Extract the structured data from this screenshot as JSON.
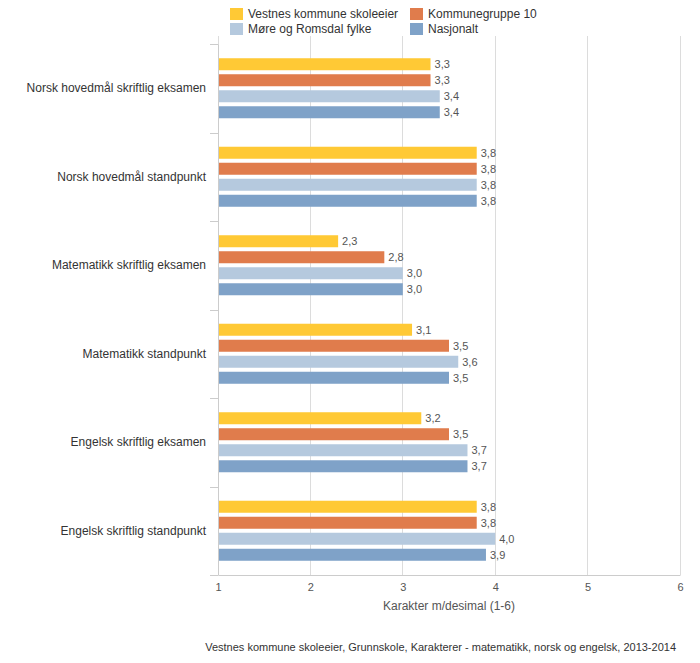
{
  "chart_data": {
    "type": "bar",
    "orientation": "horizontal",
    "categories": [
      "Norsk hovedmål skriftlig eksamen",
      "Norsk hovedmål standpunkt",
      "Matematikk skriftlig eksamen",
      "Matematikk standpunkt",
      "Engelsk skriftlig eksamen",
      "Engelsk skriftlig standpunkt"
    ],
    "series": [
      {
        "name": "Vestnes kommune skoleeier",
        "color": "#ffc935",
        "values": [
          3.3,
          3.8,
          2.3,
          3.1,
          3.2,
          3.8
        ],
        "value_labels": [
          "3,3",
          "3,8",
          "2,3",
          "3,1",
          "3,2",
          "3,8"
        ]
      },
      {
        "name": "Kommunegruppe 10",
        "color": "#e07c4c",
        "values": [
          3.3,
          3.8,
          2.8,
          3.5,
          3.5,
          3.8
        ],
        "value_labels": [
          "3,3",
          "3,8",
          "2,8",
          "3,5",
          "3,5",
          "3,8"
        ]
      },
      {
        "name": "Møre og Romsdal fylke",
        "color": "#b5c9de",
        "values": [
          3.4,
          3.8,
          3.0,
          3.6,
          3.7,
          4.0
        ],
        "value_labels": [
          "3,4",
          "3,8",
          "3,0",
          "3,6",
          "3,7",
          "4,0"
        ]
      },
      {
        "name": "Nasjonalt",
        "color": "#7fa2c8",
        "values": [
          3.4,
          3.8,
          3.0,
          3.5,
          3.7,
          3.9
        ],
        "value_labels": [
          "3,4",
          "3,8",
          "3,0",
          "3,5",
          "3,7",
          "3,9"
        ]
      }
    ],
    "x_label": "Karakter m/desimal (1-6)",
    "xlim": [
      1,
      6
    ],
    "xticks": [
      1,
      2,
      3,
      4,
      5,
      6
    ],
    "grid": true,
    "legend": "top",
    "data_labels": true,
    "annotations": [
      "Vestnes kommune skoleeier, Grunnskole, Karakterer - matematikk, norsk og engelsk, 2013-2014"
    ]
  }
}
